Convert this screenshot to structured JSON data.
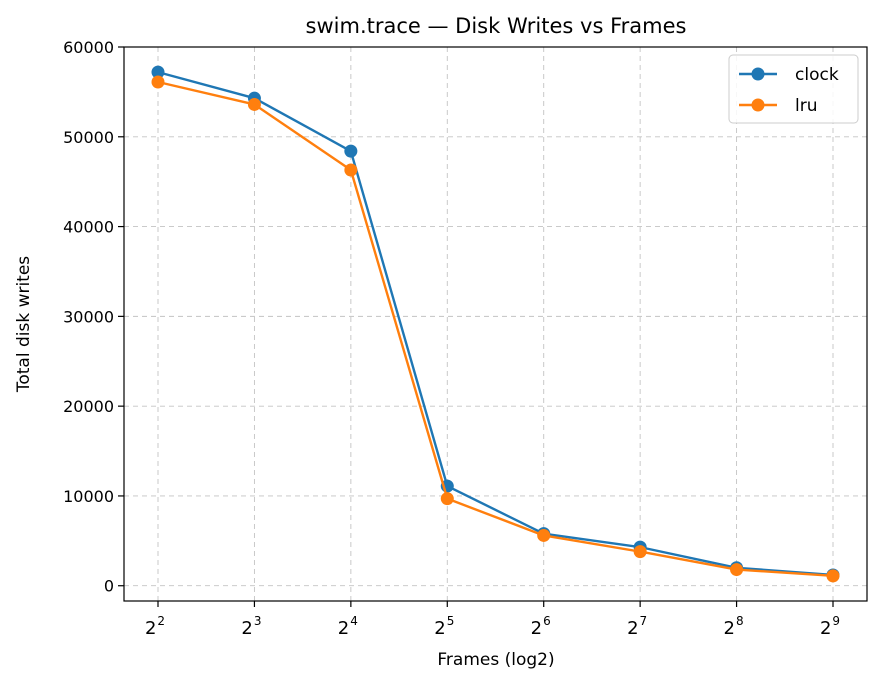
{
  "chart_data": {
    "type": "line",
    "title": "swim.trace — Disk Writes vs Frames",
    "xlabel": "Frames (log2)",
    "ylabel": "Total disk writes",
    "x_scale": "log2",
    "x": [
      4,
      8,
      16,
      32,
      64,
      128,
      256,
      512
    ],
    "x_tick_labels": [
      {
        "base": "2",
        "exp": "2"
      },
      {
        "base": "2",
        "exp": "3"
      },
      {
        "base": "2",
        "exp": "4"
      },
      {
        "base": "2",
        "exp": "5"
      },
      {
        "base": "2",
        "exp": "6"
      },
      {
        "base": "2",
        "exp": "7"
      },
      {
        "base": "2",
        "exp": "8"
      },
      {
        "base": "2",
        "exp": "9"
      }
    ],
    "ylim": [
      -1700,
      60000
    ],
    "y_ticks": [
      0,
      10000,
      20000,
      30000,
      40000,
      50000,
      60000
    ],
    "y_tick_labels": [
      "0",
      "10000",
      "20000",
      "30000",
      "40000",
      "50000",
      "60000"
    ],
    "grid": true,
    "legend_position": "top-right",
    "series": [
      {
        "name": "clock",
        "color": "#1f77b4",
        "values": [
          57200,
          54300,
          48400,
          11100,
          5800,
          4300,
          2000,
          1200
        ]
      },
      {
        "name": "lru",
        "color": "#ff7f0e",
        "values": [
          56100,
          53600,
          46300,
          9700,
          5600,
          3800,
          1800,
          1100
        ]
      }
    ]
  }
}
